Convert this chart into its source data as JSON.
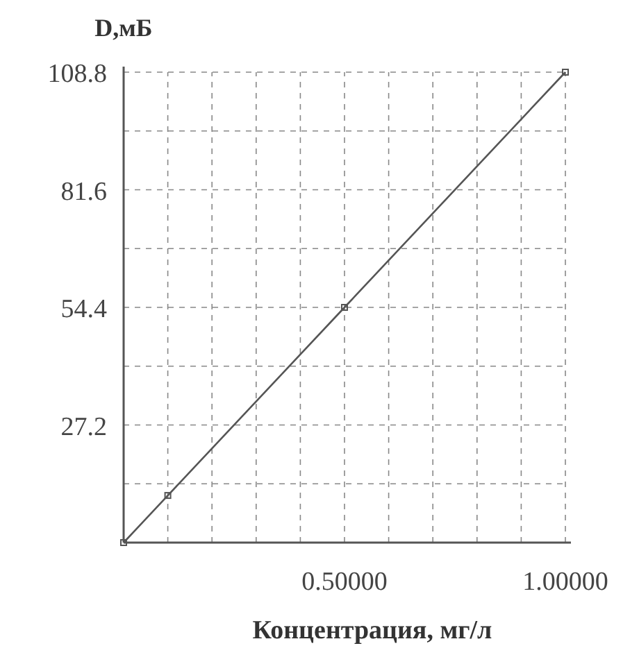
{
  "chart_data": {
    "type": "line",
    "xlabel": "Концентрация, мг/л",
    "ylabel": "D,мБ",
    "x": [
      0,
      0.1,
      0.5,
      1.0
    ],
    "series": [
      {
        "color": "#555555",
        "values": [
          0,
          10.9,
          54.4,
          108.8
        ]
      }
    ],
    "xlim": [
      0,
      1.0
    ],
    "ylim": [
      0,
      108.8
    ],
    "xticks": [
      {
        "value": 0.1,
        "label": null
      },
      {
        "value": 0.2,
        "label": null
      },
      {
        "value": 0.3,
        "label": null
      },
      {
        "value": 0.4,
        "label": null
      },
      {
        "value": 0.5,
        "label": "0.50000"
      },
      {
        "value": 0.6,
        "label": null
      },
      {
        "value": 0.7,
        "label": null
      },
      {
        "value": 0.8,
        "label": null
      },
      {
        "value": 0.9,
        "label": null
      },
      {
        "value": 1.0,
        "label": "1.00000"
      }
    ],
    "yticks": [
      {
        "value": 13.6,
        "label": null
      },
      {
        "value": 27.2,
        "label": "27.2"
      },
      {
        "value": 40.8,
        "label": null
      },
      {
        "value": 54.4,
        "label": "54.4"
      },
      {
        "value": 68,
        "label": null
      },
      {
        "value": 81.6,
        "label": "81.6"
      },
      {
        "value": 95.2,
        "label": null
      },
      {
        "value": 108.8,
        "label": "108.8"
      }
    ],
    "grid": true,
    "marker": "square",
    "line_style": "solid"
  }
}
